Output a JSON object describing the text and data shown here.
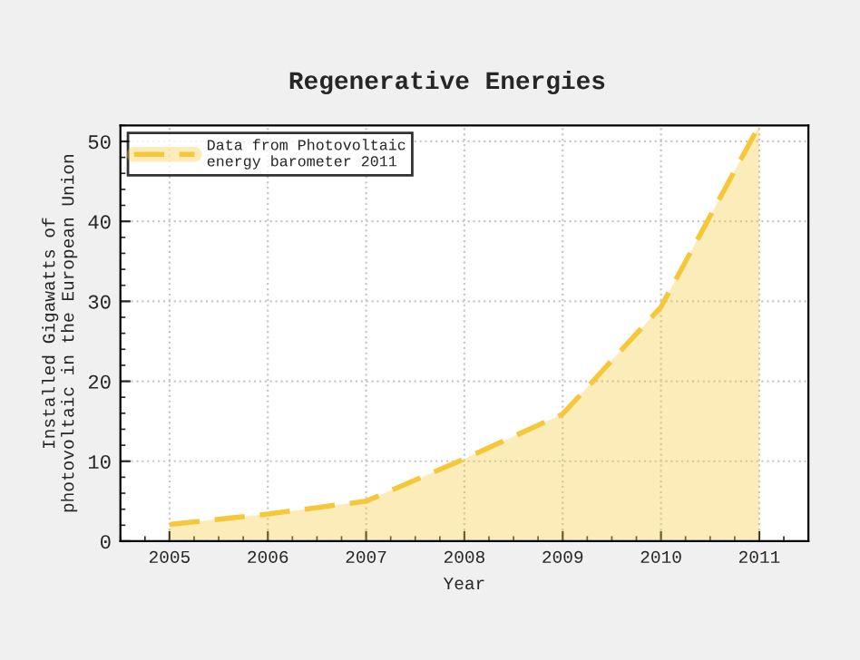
{
  "chart_data": {
    "type": "area",
    "title": "Regenerative Energies",
    "xlabel": "Year",
    "ylabel": "Installed Gigawatts of\nphotovoltaic in the European Union",
    "x": [
      2005,
      2006,
      2007,
      2008,
      2009,
      2010,
      2011
    ],
    "series": [
      {
        "name": "Data from Photovoltaic\nenergy barometer 2011",
        "color": "#f5c83a",
        "values": [
          2.1,
          3.4,
          5.0,
          10.3,
          15.9,
          29.3,
          52
        ]
      }
    ],
    "xlim": [
      2004.5,
      2011.5
    ],
    "xticks": [
      2005,
      2006,
      2007,
      2008,
      2009,
      2010,
      2011
    ],
    "ylim": [
      0,
      52
    ],
    "yticks": [
      0,
      10,
      20,
      30,
      40,
      50
    ],
    "grid": true,
    "legend": "top left",
    "line_style": "dashed",
    "marker": "none"
  }
}
